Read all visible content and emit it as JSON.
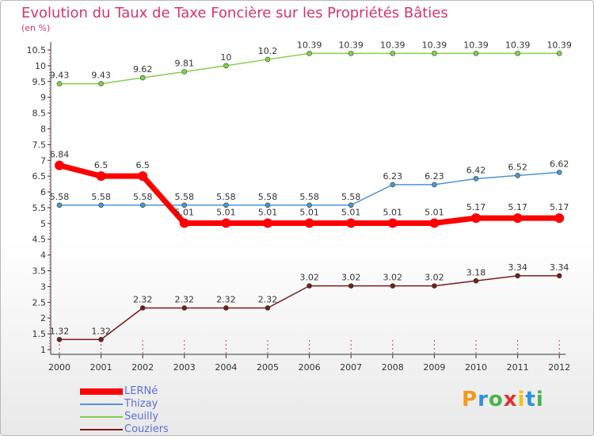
{
  "brand": {
    "name": "Proxiti",
    "letter_colors": [
      "#f29a1d",
      "#2f8fdd",
      "#46b54a",
      "#e0312f",
      "#f2c21b",
      "#2f8fdd",
      "#46b54a"
    ]
  },
  "chart_data": {
    "type": "line",
    "title": "Evolution du Taux de Taxe Foncière sur les Propriétés Bâties",
    "ylabel": "(en %)",
    "xlabel": "",
    "categories": [
      "2000",
      "2001",
      "2002",
      "2003",
      "2004",
      "2005",
      "2006",
      "2007",
      "2008",
      "2009",
      "2010",
      "2011",
      "2012"
    ],
    "ylim": [
      1,
      10.5
    ],
    "yticks": [
      "1",
      "1.5",
      "2",
      "2.5",
      "3",
      "3.5",
      "4",
      "4.5",
      "5",
      "5.5",
      "6",
      "6.5",
      "7",
      "7.5",
      "8",
      "8.5",
      "9",
      "9.5",
      "10",
      "10.5"
    ],
    "grid": false,
    "legend_position": "bottom-left",
    "series": [
      {
        "name": "LERNé",
        "color": "#ff0000",
        "width": 7,
        "marker": 6,
        "values": [
          6.84,
          6.5,
          6.5,
          5.01,
          5.01,
          5.01,
          5.01,
          5.01,
          5.01,
          5.01,
          5.17,
          5.17,
          5.17
        ],
        "labels": [
          "6.84",
          "6.5",
          "6.5",
          "5.01",
          "5.01",
          "5.01",
          "5.01",
          "5.01",
          "5.01",
          "5.01",
          "5.17",
          "5.17",
          "5.17"
        ]
      },
      {
        "name": "Thizay",
        "color": "#4f94d1",
        "width": 1.5,
        "marker": 3,
        "values": [
          5.58,
          5.58,
          5.58,
          5.58,
          5.58,
          5.58,
          5.58,
          5.58,
          6.23,
          6.23,
          6.42,
          6.52,
          6.62
        ],
        "labels": [
          "5.58",
          "5.58",
          "5.58",
          "5.58",
          "5.58",
          "5.58",
          "5.58",
          "5.58",
          "6.23",
          "6.23",
          "6.42",
          "6.52",
          "6.62"
        ]
      },
      {
        "name": "Seuilly",
        "color": "#84d04f",
        "width": 1.5,
        "marker": 3,
        "values": [
          9.43,
          9.43,
          9.62,
          9.81,
          10,
          10.2,
          10.39,
          10.39,
          10.39,
          10.39,
          10.39,
          10.39,
          10.39
        ],
        "labels": [
          "9.43",
          "9.43",
          "9.62",
          "9.81",
          "10",
          "10.2",
          "10.39",
          "10.39",
          "10.39",
          "10.39",
          "10.39",
          "10.39",
          "10.39"
        ]
      },
      {
        "name": "Couziers",
        "color": "#7b1a1e",
        "width": 1.5,
        "marker": 3,
        "values": [
          1.32,
          1.32,
          2.32,
          2.32,
          2.32,
          2.32,
          3.02,
          3.02,
          3.02,
          3.02,
          3.18,
          3.34,
          3.34
        ],
        "labels": [
          "1.32",
          "1.32",
          "2.32",
          "2.32",
          "2.32",
          "2.32",
          "3.02",
          "3.02",
          "3.02",
          "3.02",
          "3.18",
          "3.34",
          "3.34"
        ]
      }
    ]
  }
}
